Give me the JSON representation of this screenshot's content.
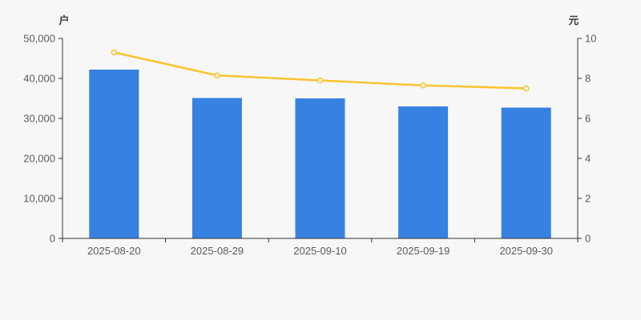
{
  "background_color": "#f7f7f7",
  "axis_color": "#333333",
  "label_color": "#5a5a5a",
  "unit_label_color": "#3d3d3d",
  "chart_data": {
    "type": "bar",
    "title": "",
    "categories": [
      "2025-08-20",
      "2025-08-29",
      "2025-09-10",
      "2025-09-19",
      "2025-09-30"
    ],
    "series": [
      {
        "type": "bar",
        "axis": "left",
        "color": "#3781e3",
        "values": [
          42200,
          35100,
          35000,
          33000,
          32700
        ]
      },
      {
        "type": "line",
        "axis": "right",
        "color": "#fcc32d",
        "marker_fill": "#ffffff",
        "values": [
          9.3,
          8.15,
          7.9,
          7.65,
          7.5
        ]
      }
    ],
    "left_axis": {
      "name": "户",
      "min": 0,
      "max": 50000,
      "tick_values": [
        0,
        10000,
        20000,
        30000,
        40000,
        50000
      ],
      "tick_labels": [
        "0",
        "10,000",
        "20,000",
        "30,000",
        "40,000",
        "50,000"
      ]
    },
    "right_axis": {
      "name": "元",
      "min": 0,
      "max": 10,
      "tick_values": [
        0,
        2,
        4,
        6,
        8,
        10
      ],
      "tick_labels": [
        "0",
        "2",
        "4",
        "6",
        "8",
        "10"
      ]
    },
    "grid": false,
    "legend_position": "none"
  }
}
